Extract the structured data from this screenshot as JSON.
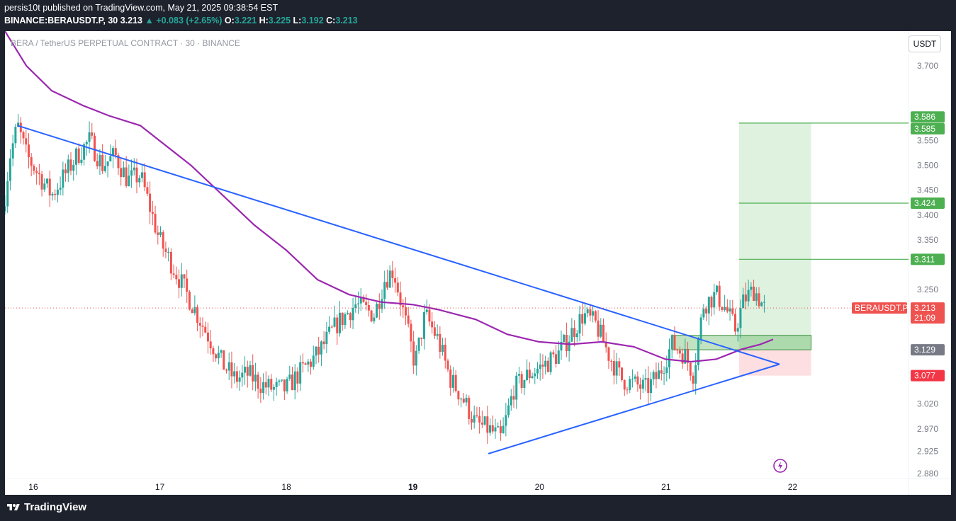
{
  "header": {
    "line1": "persis10t published on TradingView.com, May 21, 2025 09:38:54 EST",
    "symbol": "BINANCE:BERAUSDT.P, 30",
    "price": "3.213",
    "change": "▲ +0.083 (+2.65%)",
    "o_label": "O:",
    "o": "3.221",
    "h_label": "H:",
    "h": "3.225",
    "l_label": "L:",
    "l": "3.192",
    "c_label": "C:",
    "c": "3.213"
  },
  "panel": {
    "title": "BERA / TetherUS PERPETUAL CONTRACT · 30 · BINANCE",
    "currency_button": "USDT"
  },
  "footer": {
    "brand": "TradingView"
  },
  "colors": {
    "up": "#26a69a",
    "down": "#ef5350",
    "ma": "#9c27b0",
    "trendline": "#2962ff",
    "target": "#4caf50",
    "stop": "#f23645",
    "entry": "#787b86"
  },
  "chart_data": {
    "type": "candlestick",
    "interval": "30",
    "y_range": [
      2.87,
      3.77
    ],
    "y_ticks": [
      "3.700",
      "3.550",
      "3.500",
      "3.450",
      "3.400",
      "3.350",
      "3.250",
      "3.020",
      "2.970",
      "2.925",
      "2.880"
    ],
    "x_ticks": [
      "16",
      "17",
      "18",
      "19",
      "20",
      "21",
      "22"
    ],
    "x_tick_positions_day": [
      16,
      17,
      18,
      19,
      20,
      21,
      22
    ],
    "x_range_day": [
      15.78,
      22.92
    ],
    "last_price": 3.213,
    "last_price_label": "BERAUSDT.P",
    "countdown": "21:09",
    "price_labels": [
      {
        "value": 3.586,
        "text": "3.586",
        "kind": "target"
      },
      {
        "value": 3.585,
        "text": "3.585",
        "kind": "target"
      },
      {
        "value": 3.424,
        "text": "3.424",
        "kind": "target"
      },
      {
        "value": 3.311,
        "text": "3.311",
        "kind": "target"
      },
      {
        "value": 3.129,
        "text": "3.129",
        "kind": "entry"
      },
      {
        "value": 3.077,
        "text": "3.077",
        "kind": "stop"
      }
    ],
    "position": {
      "start_day": 21.58,
      "end_day": 22.15,
      "entry": 3.129,
      "stop": 3.077,
      "target": 3.585,
      "entry_zone": [
        3.129,
        3.158
      ],
      "entry_zone_start_day": 21.05,
      "take_profits": [
        3.311,
        3.424,
        3.585
      ]
    },
    "trendlines": [
      {
        "name": "",
        "points": [
          [
            15.88,
            3.58
          ],
          [
            21.9,
            3.1
          ]
        ]
      },
      {
        "name": "",
        "points": [
          [
            19.6,
            2.92
          ],
          [
            21.9,
            3.1
          ]
        ]
      }
    ],
    "ma_series": [
      [
        15.78,
        3.77
      ],
      [
        15.95,
        3.7
      ],
      [
        16.15,
        3.65
      ],
      [
        16.4,
        3.62
      ],
      [
        16.6,
        3.6
      ],
      [
        16.85,
        3.58
      ],
      [
        17.0,
        3.55
      ],
      [
        17.25,
        3.5
      ],
      [
        17.5,
        3.44
      ],
      [
        17.75,
        3.38
      ],
      [
        18.0,
        3.33
      ],
      [
        18.25,
        3.27
      ],
      [
        18.5,
        3.24
      ],
      [
        18.75,
        3.225
      ],
      [
        19.0,
        3.22
      ],
      [
        19.2,
        3.21
      ],
      [
        19.5,
        3.19
      ],
      [
        19.75,
        3.16
      ],
      [
        20.0,
        3.145
      ],
      [
        20.25,
        3.14
      ],
      [
        20.5,
        3.145
      ],
      [
        20.75,
        3.135
      ],
      [
        21.0,
        3.11
      ],
      [
        21.2,
        3.105
      ],
      [
        21.4,
        3.11
      ],
      [
        21.6,
        3.13
      ],
      [
        21.75,
        3.14
      ],
      [
        21.85,
        3.15
      ]
    ],
    "anchors": [
      [
        15.78,
        3.44
      ],
      [
        15.82,
        3.52
      ],
      [
        15.88,
        3.58
      ],
      [
        15.95,
        3.52
      ],
      [
        16.05,
        3.48
      ],
      [
        16.15,
        3.44
      ],
      [
        16.25,
        3.48
      ],
      [
        16.35,
        3.52
      ],
      [
        16.45,
        3.55
      ],
      [
        16.55,
        3.5
      ],
      [
        16.65,
        3.52
      ],
      [
        16.75,
        3.47
      ],
      [
        16.85,
        3.48
      ],
      [
        16.92,
        3.42
      ],
      [
        17.0,
        3.35
      ],
      [
        17.1,
        3.3
      ],
      [
        17.2,
        3.25
      ],
      [
        17.3,
        3.2
      ],
      [
        17.4,
        3.15
      ],
      [
        17.5,
        3.1
      ],
      [
        17.6,
        3.07
      ],
      [
        17.7,
        3.08
      ],
      [
        17.8,
        3.06
      ],
      [
        17.9,
        3.05
      ],
      [
        18.0,
        3.05
      ],
      [
        18.1,
        3.08
      ],
      [
        18.25,
        3.12
      ],
      [
        18.4,
        3.18
      ],
      [
        18.55,
        3.22
      ],
      [
        18.7,
        3.2
      ],
      [
        18.78,
        3.27
      ],
      [
        18.85,
        3.29
      ],
      [
        18.95,
        3.18
      ],
      [
        19.02,
        3.1
      ],
      [
        19.1,
        3.2
      ],
      [
        19.2,
        3.15
      ],
      [
        19.3,
        3.07
      ],
      [
        19.4,
        3.03
      ],
      [
        19.5,
        2.98
      ],
      [
        19.6,
        2.97
      ],
      [
        19.7,
        2.95
      ],
      [
        19.8,
        3.05
      ],
      [
        19.92,
        3.08
      ],
      [
        20.05,
        3.1
      ],
      [
        20.15,
        3.12
      ],
      [
        20.25,
        3.16
      ],
      [
        20.35,
        3.2
      ],
      [
        20.45,
        3.18
      ],
      [
        20.55,
        3.12
      ],
      [
        20.65,
        3.07
      ],
      [
        20.75,
        3.06
      ],
      [
        20.85,
        3.05
      ],
      [
        20.95,
        3.08
      ],
      [
        21.05,
        3.14
      ],
      [
        21.15,
        3.12
      ],
      [
        21.22,
        3.08
      ],
      [
        21.3,
        3.22
      ],
      [
        21.4,
        3.24
      ],
      [
        21.48,
        3.21
      ],
      [
        21.55,
        3.17
      ],
      [
        21.62,
        3.23
      ],
      [
        21.7,
        3.25
      ],
      [
        21.78,
        3.213
      ]
    ]
  }
}
